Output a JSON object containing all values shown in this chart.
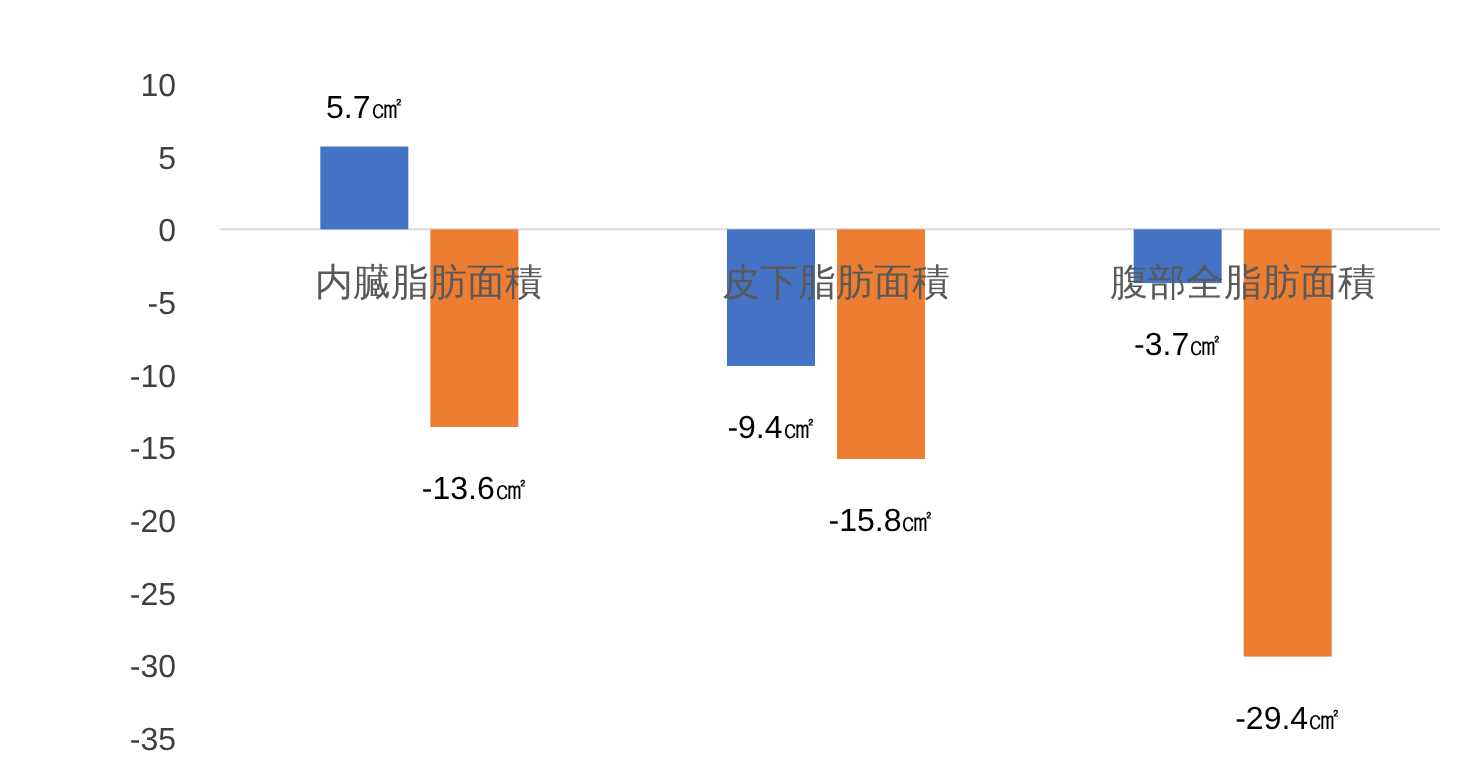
{
  "chart_data": {
    "type": "bar",
    "categories": [
      "内臓脂肪面積",
      "皮下脂肪面積",
      "腹部全脂肪面積"
    ],
    "series": [
      {
        "color": "#4472c4",
        "values": [
          5.7,
          -9.4,
          -3.7
        ],
        "value_labels": [
          "5.7㎠",
          "-9.4㎠",
          "-3.7㎠"
        ]
      },
      {
        "color": "#ed7d31",
        "values": [
          -13.6,
          -15.8,
          -29.4
        ],
        "value_labels": [
          "-13.6㎠",
          "-15.8㎠",
          "-29.4㎠"
        ]
      }
    ],
    "ylim": [
      -35,
      10
    ],
    "yticks": [
      -35,
      -30,
      -25,
      -20,
      -15,
      -10,
      -5,
      0,
      5,
      10
    ],
    "grid": false
  }
}
